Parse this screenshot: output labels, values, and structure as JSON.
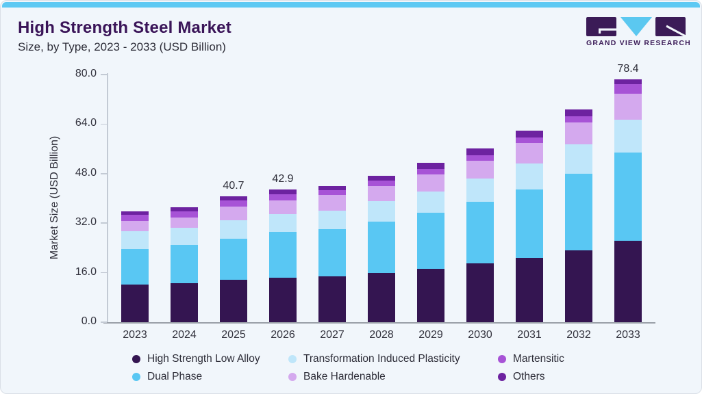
{
  "header": {
    "title": "High Strength Steel Market",
    "subtitle": "Size, by Type, 2023 - 2033 (USD Billion)"
  },
  "logo": {
    "text": "GRAND VIEW RESEARCH",
    "dark_color": "#3b1b57",
    "accent_color": "#5bc8f0"
  },
  "chart_data": {
    "type": "bar",
    "stacked": true,
    "title": "High Strength Steel Market Size, by Type, 2023 - 2033 (USD Billion)",
    "xlabel": "",
    "ylabel": "Market Size (USD Billion)",
    "ylim": [
      0,
      80
    ],
    "yticks": [
      0,
      16,
      32,
      48,
      64,
      80
    ],
    "ytick_labels": [
      "0.0",
      "16.0",
      "32.0",
      "48.0",
      "64.0",
      "80.0"
    ],
    "grid": false,
    "legend_position": "bottom",
    "categories": [
      "2023",
      "2024",
      "2025",
      "2026",
      "2027",
      "2028",
      "2029",
      "2030",
      "2031",
      "2032",
      "2033"
    ],
    "series": [
      {
        "name": "High Strength Low Alloy",
        "color": "#341551",
        "values": [
          12.1,
          12.6,
          13.7,
          14.3,
          14.8,
          15.9,
          17.2,
          19.0,
          20.7,
          23.2,
          26.4
        ]
      },
      {
        "name": "Dual Phase",
        "color": "#59c7f3",
        "values": [
          11.5,
          12.4,
          13.3,
          14.9,
          15.2,
          16.6,
          18.1,
          19.9,
          22.1,
          24.7,
          28.4
        ]
      },
      {
        "name": "Transformation Induced Plasticity",
        "color": "#bfe6fa",
        "values": [
          5.7,
          5.5,
          6.0,
          5.7,
          6.0,
          6.6,
          6.8,
          7.5,
          8.4,
          9.5,
          10.6
        ]
      },
      {
        "name": "Bake Hardenable",
        "color": "#d4a9ee",
        "values": [
          3.3,
          3.3,
          4.4,
          4.4,
          5.1,
          4.9,
          5.7,
          5.8,
          6.6,
          7.1,
          8.4
        ]
      },
      {
        "name": "Martensitic",
        "color": "#a753d6",
        "values": [
          2.0,
          2.0,
          1.9,
          2.1,
          1.6,
          1.8,
          1.8,
          1.8,
          1.8,
          2.0,
          3.0
        ]
      },
      {
        "name": "Others",
        "color": "#6d22a0",
        "values": [
          1.2,
          1.3,
          1.4,
          1.5,
          1.3,
          1.5,
          1.8,
          2.1,
          2.2,
          2.2,
          1.6
        ]
      }
    ],
    "totals": [
      35.8,
      37.1,
      40.7,
      42.9,
      44.0,
      47.3,
      51.4,
      56.1,
      61.8,
      68.7,
      78.4
    ],
    "total_labels": [
      {
        "category": "2025",
        "text": "40.7"
      },
      {
        "category": "2026",
        "text": "42.9"
      },
      {
        "category": "2033",
        "text": "78.4"
      }
    ]
  }
}
